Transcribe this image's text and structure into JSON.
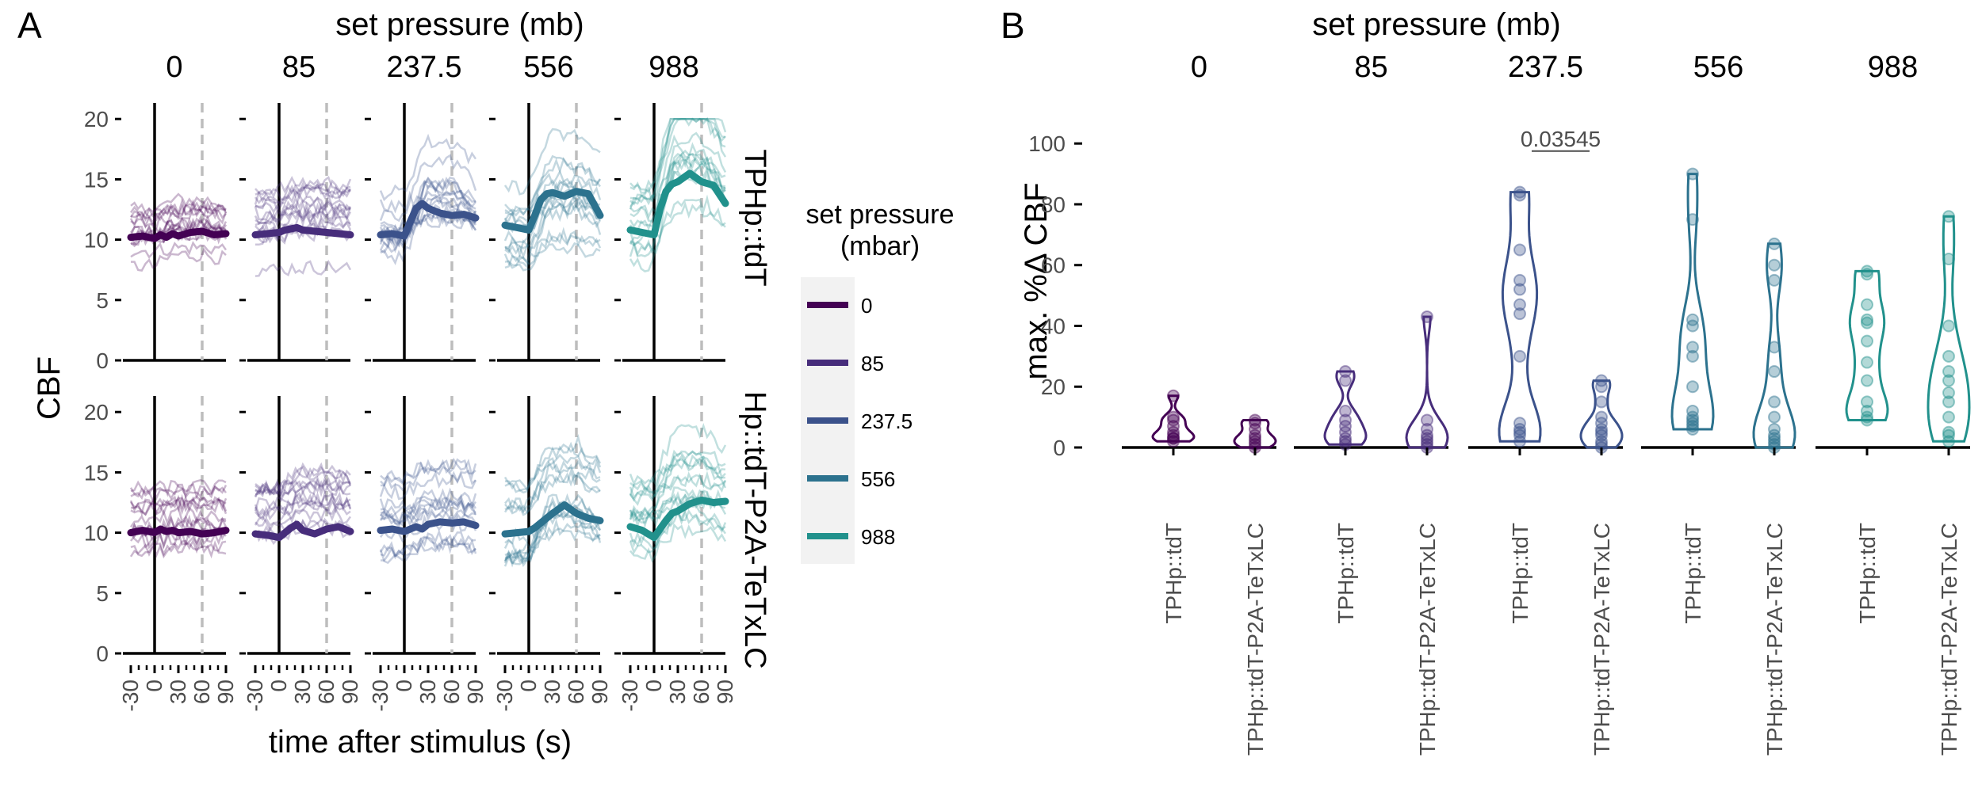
{
  "colors": {
    "0": "#440154",
    "85": "#472d7b",
    "237.5": "#3b528b",
    "556": "#2c728e",
    "988": "#21918c",
    "axis": "#000000",
    "tick_text": "#4d4d4d",
    "stim_off_line": "#bdbdbd",
    "legend_bg": "#f2f2f2"
  },
  "chart_data": [
    {
      "panel_tag": "A",
      "type": "line",
      "col_strip_title": "set pressure (mb)",
      "col_strips": [
        "0",
        "85",
        "237.5",
        "556",
        "988"
      ],
      "row_strips": [
        "TPHp::tdT",
        "TPHp::tdT-P2A-TeTxLC"
      ],
      "xlabel": "time after stimulus (s)",
      "ylabel": "CBF",
      "x_ticks": [
        "-30",
        "0",
        "30",
        "60",
        "90"
      ],
      "xlim": [
        -40,
        90
      ],
      "y_ticks": [
        "0",
        "5",
        "10",
        "15",
        "20"
      ],
      "ylim": [
        0,
        21
      ],
      "stimulus_on_s": 0,
      "stimulus_off_s": 60,
      "individual_traces_per_panel": 16,
      "mean_series": {
        "TPHp::tdT": {
          "0": [
            10.2,
            10.3,
            10.1,
            10.4,
            10.2,
            10.5,
            10.3,
            10.6,
            10.7,
            10.4,
            10.5
          ],
          "85": [
            10.4,
            10.5,
            10.6,
            10.8,
            10.9,
            11.0,
            10.8,
            10.7,
            10.6,
            10.5,
            10.4
          ],
          "237.5": [
            10.4,
            10.5,
            10.3,
            11.5,
            12.6,
            13.0,
            12.6,
            12.2,
            12.0,
            12.1,
            11.8
          ],
          "556": [
            11.2,
            11.0,
            10.8,
            12.0,
            13.3,
            13.8,
            13.9,
            13.6,
            14.0,
            13.8,
            12.0
          ],
          "988": [
            10.8,
            10.6,
            10.4,
            12.5,
            14.0,
            14.6,
            14.8,
            15.5,
            14.8,
            14.5,
            13.0
          ]
        },
        "TPHp::tdT-P2A-TeTxLC": {
          "0": [
            10.0,
            10.2,
            10.0,
            10.3,
            10.1,
            10.2,
            10.0,
            10.1,
            9.9,
            10.0,
            10.2
          ],
          "85": [
            9.9,
            9.8,
            9.6,
            10.0,
            10.4,
            10.7,
            10.2,
            9.9,
            10.3,
            10.5,
            10.1
          ],
          "237.5": [
            10.2,
            10.3,
            10.1,
            10.3,
            10.5,
            10.3,
            10.7,
            10.9,
            10.8,
            10.9,
            10.6
          ],
          "556": [
            9.9,
            10.0,
            10.1,
            10.4,
            10.8,
            11.2,
            11.6,
            12.3,
            11.6,
            11.2,
            11.0
          ],
          "988": [
            10.5,
            10.2,
            9.6,
            10.3,
            11.0,
            11.6,
            11.8,
            12.4,
            12.7,
            12.5,
            12.6
          ]
        }
      },
      "mean_series_x": [
        -30,
        -15,
        0,
        7.5,
        15,
        22.5,
        30,
        45,
        60,
        75,
        90
      ]
    },
    {
      "panel_tag": "B",
      "type": "violin",
      "col_strip_title": "set pressure (mb)",
      "col_strips": [
        "0",
        "85",
        "237.5",
        "556",
        "988"
      ],
      "categories": [
        "TPHp::tdT",
        "TPHp::tdT-P2A-TeTxLC"
      ],
      "ylabel": "max. %Δ CBF",
      "y_ticks": [
        "0",
        "20",
        "40",
        "60",
        "80",
        "100"
      ],
      "ylim": [
        0,
        105
      ],
      "annotations": [
        {
          "pressure": "237.5",
          "text": "0.03545"
        }
      ],
      "points": {
        "0": {
          "TPHp::tdT": [
            17,
            10,
            9,
            7,
            5,
            4,
            3,
            3,
            2
          ],
          "TPHp::tdT-P2A-TeTxLC": [
            9,
            8,
            6,
            4,
            3,
            2,
            1,
            0
          ]
        },
        "85": {
          "TPHp::tdT": [
            25,
            22,
            12,
            9,
            7,
            5,
            3,
            2,
            1
          ],
          "TPHp::tdT-P2A-TeTxLC": [
            43,
            9,
            6,
            4,
            3,
            2,
            1,
            0
          ]
        },
        "237.5": {
          "TPHp::tdT": [
            84,
            83,
            65,
            55,
            52,
            47,
            44,
            30,
            8,
            6,
            5,
            4,
            2
          ],
          "TPHp::tdT-P2A-TeTxLC": [
            22,
            20,
            15,
            10,
            8,
            6,
            5,
            4,
            2,
            1,
            0
          ]
        },
        "556": {
          "TPHp::tdT": [
            90,
            75,
            42,
            40,
            33,
            30,
            20,
            12,
            10,
            9,
            8,
            7,
            6
          ],
          "TPHp::tdT-P2A-TeTxLC": [
            67,
            60,
            55,
            33,
            25,
            15,
            10,
            6,
            4,
            3,
            2,
            1,
            0
          ]
        },
        "988": {
          "TPHp::tdT": [
            58,
            57,
            47,
            42,
            41,
            35,
            28,
            22,
            15,
            12,
            10,
            9
          ],
          "TPHp::tdT-P2A-TeTxLC": [
            76,
            62,
            40,
            30,
            25,
            22,
            18,
            15,
            10,
            5,
            4,
            2
          ]
        }
      }
    }
  ],
  "legend": {
    "title_line1": "set pressure",
    "title_line2": "(mbar)",
    "entries": [
      "0",
      "85",
      "237.5",
      "556",
      "988"
    ]
  }
}
